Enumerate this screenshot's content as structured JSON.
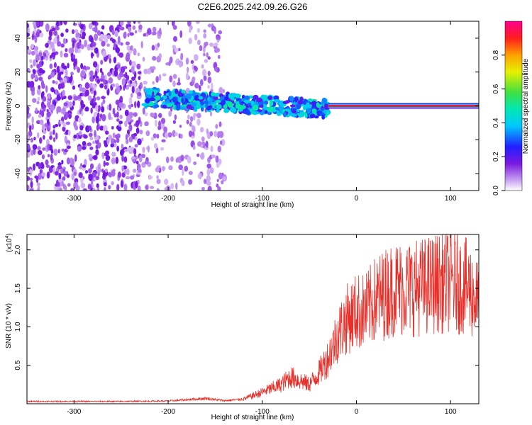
{
  "title": "C2E6.2025.242.09.26.G26",
  "colors": {
    "series_line": "#e8302a",
    "trace_core": "#e61e3c",
    "spectro_low": "#7a18e0",
    "axis": "#000000"
  },
  "chart_data": [
    {
      "type": "heatmap",
      "name": "spectrogram",
      "xlabel": "Height of straight line (km)",
      "ylabel": "Frequency (Hz)",
      "xlim": [
        -350,
        130
      ],
      "ylim": [
        -50,
        50
      ],
      "xticks": [
        -300,
        -200,
        -100,
        0,
        100
      ],
      "yticks": [
        -40,
        -20,
        0,
        20,
        40
      ],
      "colorbar": {
        "label": "Normalized spectral amplitude",
        "range": [
          0,
          1
        ],
        "ticks": [
          "0.0",
          "0.2",
          "0.4",
          "0.6",
          "0.8"
        ],
        "colormap": "rainbow (white, purple, blue, cyan, green, yellow, red, magenta)"
      },
      "features": [
        {
          "region": "noise",
          "x_range": [
            -350,
            -140
          ],
          "freq_range": [
            -50,
            50
          ],
          "amplitude": 0.1
        },
        {
          "region": "trace",
          "x_range": [
            -225,
            -30
          ],
          "freq_range": [
            -8,
            12
          ],
          "amplitude": 0.4
        },
        {
          "region": "carrier",
          "x_range": [
            -30,
            130
          ],
          "freq_hz": 0,
          "amplitude": 0.95
        }
      ]
    },
    {
      "type": "line",
      "name": "snr",
      "xlabel": "Height of straight line (km)",
      "ylabel": "SNR (10 * v/v)",
      "scale_label": "(x10",
      "scale_exp": "4",
      "scale_close": ")",
      "xlim": [
        -350,
        130
      ],
      "ylim": [
        0,
        22000
      ],
      "xticks": [
        -300,
        -200,
        -100,
        0,
        100
      ],
      "yticks": [
        0.5,
        1.0,
        1.5,
        2.0
      ],
      "ytick_labels": [
        "0.5",
        "1.0",
        "1.5",
        "2.0"
      ],
      "series": [
        {
          "name": "SNR",
          "x": [
            -350,
            -300,
            -250,
            -200,
            -160,
            -140,
            -120,
            -100,
            -80,
            -70,
            -60,
            -50,
            -40,
            -30,
            -20,
            -10,
            0,
            10,
            20,
            40,
            60,
            80,
            100,
            120,
            130
          ],
          "y": [
            300,
            300,
            300,
            350,
            700,
            400,
            600,
            1500,
            2500,
            3500,
            3000,
            2500,
            4000,
            6000,
            9000,
            11000,
            12000,
            12000,
            13500,
            15000,
            15000,
            15500,
            16000,
            15000,
            13000
          ]
        }
      ]
    }
  ]
}
